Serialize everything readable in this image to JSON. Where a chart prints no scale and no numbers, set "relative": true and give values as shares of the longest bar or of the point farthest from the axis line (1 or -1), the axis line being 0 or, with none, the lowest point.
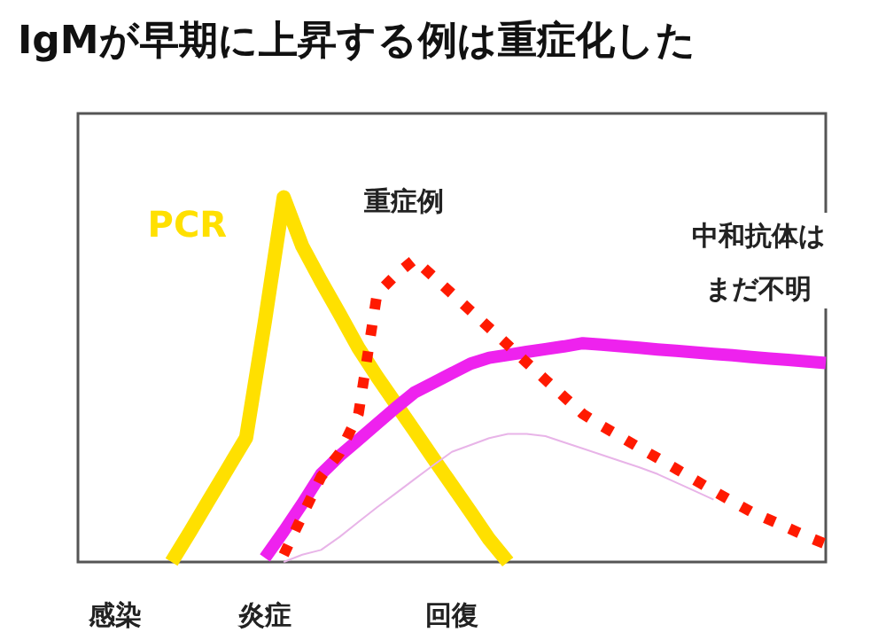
{
  "chart_data": {
    "type": "line",
    "title": "IgMが早期に上昇する例は重症化した",
    "relative": true,
    "categories": [
      null,
      null,
      "感染",
      null,
      null,
      null,
      null,
      null,
      null,
      null,
      "炎症",
      null,
      null,
      null,
      null,
      null,
      null,
      null,
      null,
      null,
      "回復",
      null,
      null,
      null,
      null,
      null,
      null,
      null,
      null,
      null,
      null,
      null,
      null,
      null,
      null,
      null,
      null,
      null,
      null,
      null,
      null
    ],
    "annotations": [
      "中和抗体はまだ不明"
    ],
    "series": [
      {
        "name": "PCR",
        "color": "#ffe000",
        "line_style": "solid",
        "values": [
          null,
          null,
          null,
          null,
          null,
          0,
          0.083,
          0.169,
          0.255,
          0.341,
          0.66,
          1,
          0.866,
          0.77,
          0.68,
          0.587,
          0.508,
          0.434,
          0.36,
          0.285,
          0.211,
          0.137,
          0.062,
          0,
          null,
          null,
          null,
          null,
          null,
          null,
          null,
          null,
          null,
          null,
          null,
          null,
          null,
          null,
          null,
          null,
          null
        ]
      },
      {
        "color": "#ee22ee",
        "line_style": "solid",
        "values": [
          null,
          null,
          null,
          null,
          null,
          null,
          null,
          null,
          null,
          null,
          0.011,
          0.084,
          0.16,
          0.241,
          0.291,
          0.335,
          0.379,
          0.423,
          0.465,
          0.491,
          0.518,
          0.544,
          0.56,
          0.568,
          0.576,
          0.584,
          0.591,
          0.6,
          0.596,
          0.592,
          0.588,
          0.583,
          0.579,
          0.575,
          0.571,
          0.567,
          0.562,
          0.558,
          0.554,
          0.55,
          0.546
        ]
      },
      {
        "name": "重症例",
        "color": "#ff1a00",
        "line_style": "dotted",
        "values": [
          null,
          null,
          null,
          null,
          null,
          null,
          null,
          null,
          null,
          null,
          null,
          0.02,
          0.127,
          0.234,
          0.299,
          0.406,
          0.736,
          0.787,
          0.83,
          0.783,
          0.736,
          0.689,
          0.642,
          0.595,
          0.547,
          0.5,
          0.453,
          0.406,
          0.374,
          0.344,
          0.314,
          0.285,
          0.255,
          0.225,
          0.195,
          0.166,
          0.138,
          0.115,
          0.093,
          0.07,
          0.049
        ]
      },
      {
        "color": "#e8b4e8",
        "line_style": "solid",
        "values": [
          null,
          null,
          null,
          null,
          null,
          null,
          null,
          null,
          null,
          null,
          null,
          0,
          0.02,
          0.033,
          0.069,
          0.11,
          0.15,
          0.188,
          0.227,
          0.265,
          0.302,
          0.321,
          0.34,
          0.351,
          0.351,
          0.345,
          0.328,
          0.311,
          0.294,
          0.277,
          0.26,
          0.241,
          0.218,
          0.195,
          0.171,
          null,
          null,
          null,
          null,
          null,
          null
        ]
      }
    ],
    "legend": false,
    "grid": false
  }
}
